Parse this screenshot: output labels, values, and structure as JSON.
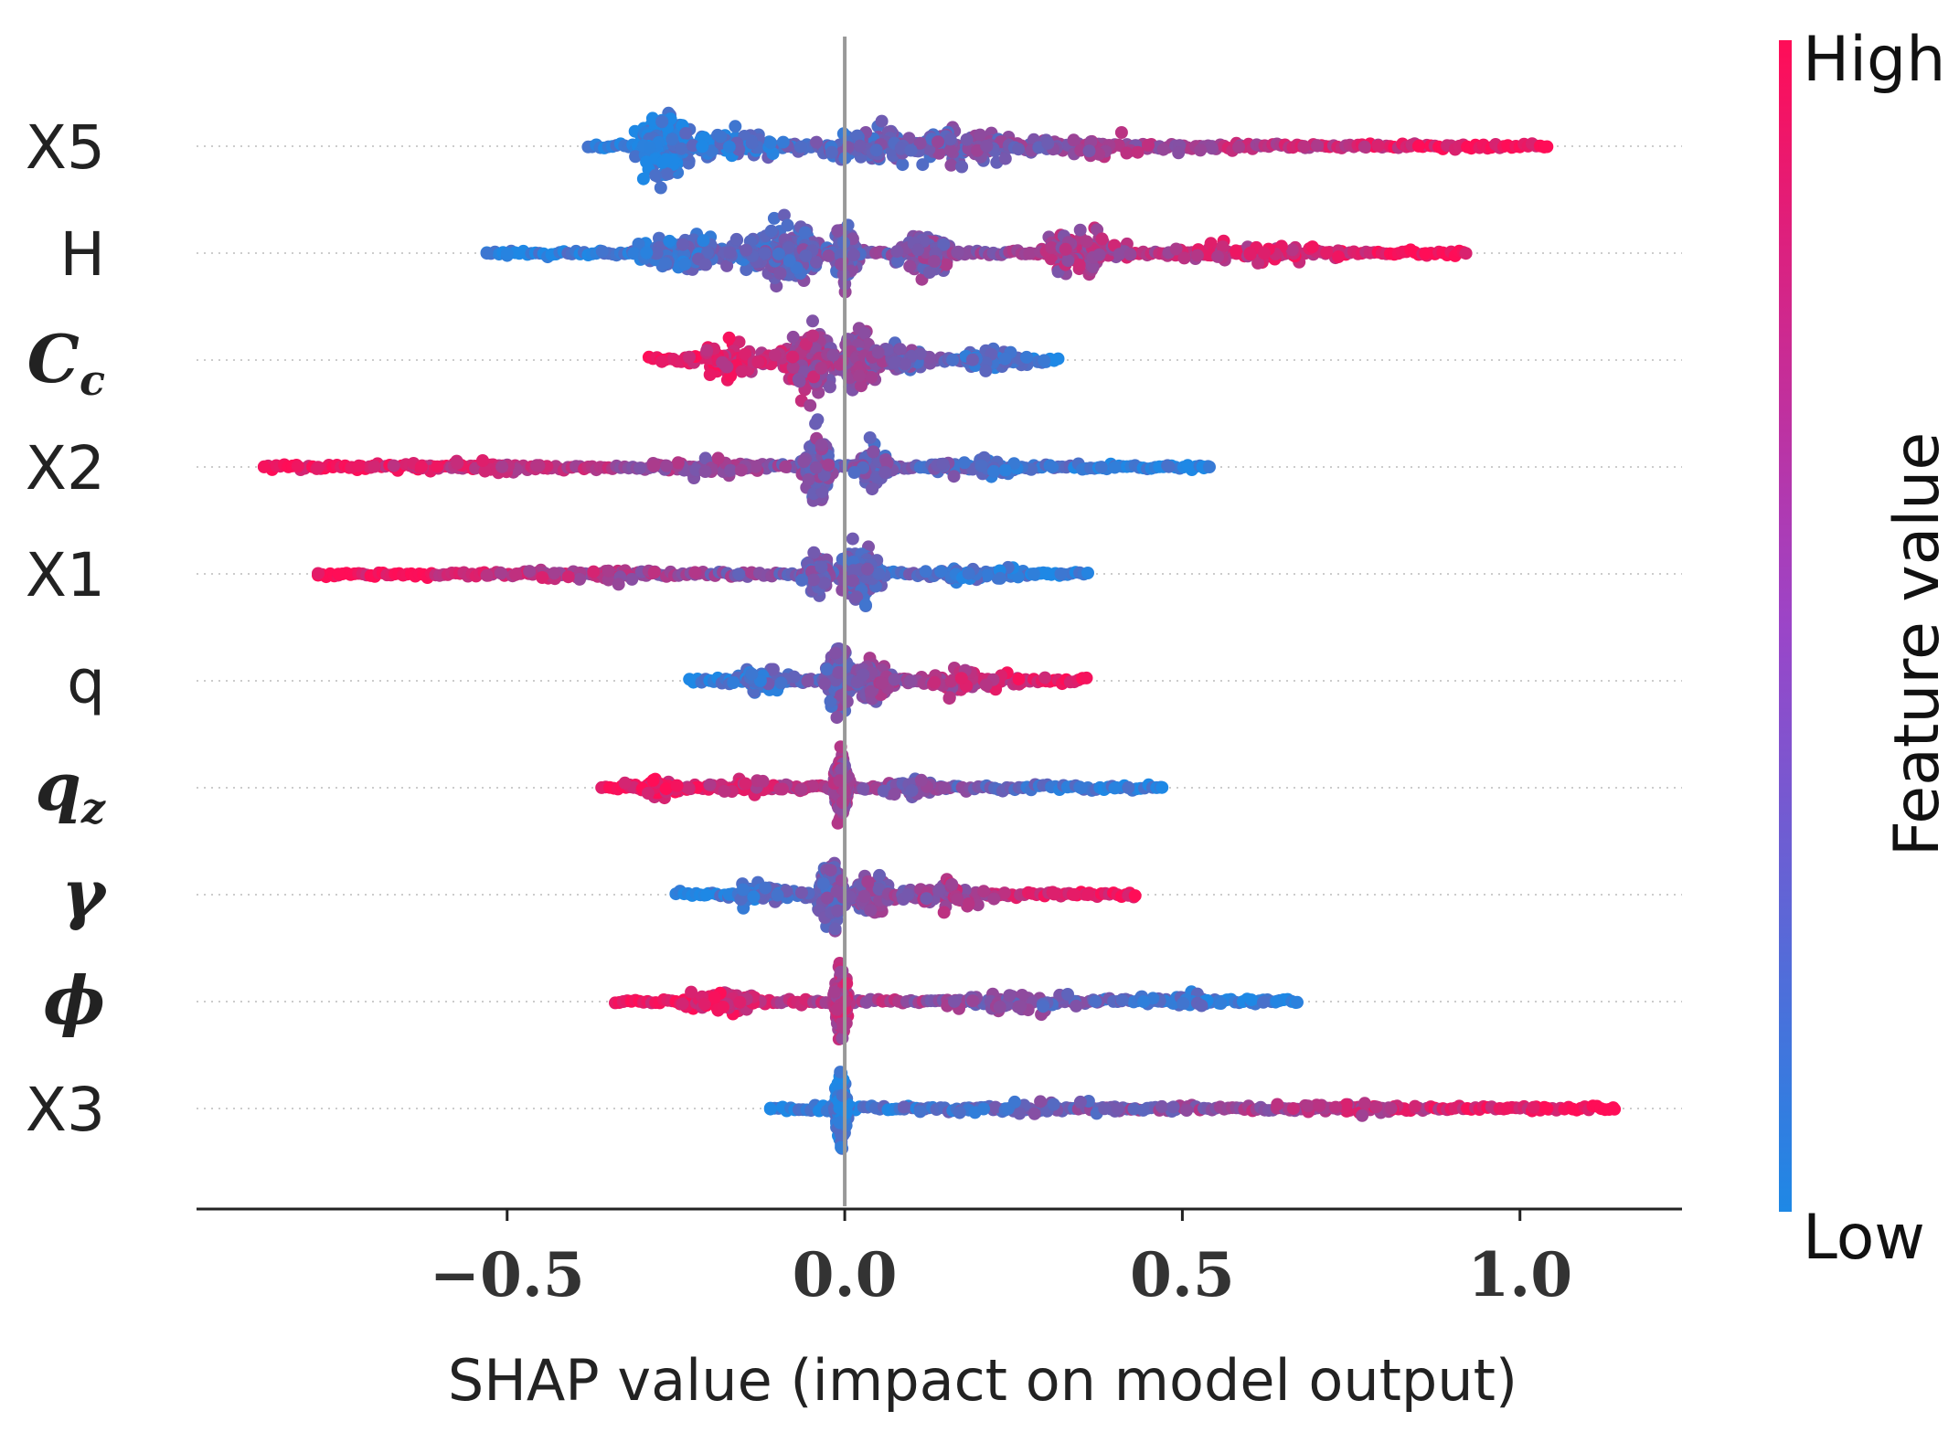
{
  "chart_data": {
    "type": "scatter",
    "subtype": "shap-beeswarm",
    "xlabel": "SHAP value (impact on model output)",
    "xticks": [
      "−0.5",
      "0.0",
      "0.5",
      "1.0"
    ],
    "xtick_values": [
      -0.5,
      0.0,
      0.5,
      1.0
    ],
    "xlim": [
      -0.96,
      1.24
    ],
    "colorbar": {
      "title": "Feature value",
      "high_label": "High",
      "low_label": "Low",
      "high_color": "#ff0d57",
      "low_color": "#1e88e5"
    },
    "features": [
      {
        "name": "X5",
        "math": false,
        "min": -0.38,
        "max": 1.04,
        "high_side": "positive",
        "clusters": [
          [
            -0.27,
            0.04,
            0.95
          ],
          [
            -0.17,
            0.09,
            0.45
          ],
          [
            0.05,
            0.09,
            0.5
          ],
          [
            0.17,
            0.09,
            0.55
          ],
          [
            0.38,
            0.16,
            0.3
          ]
        ],
        "outliers": [
          0.68,
          0.7,
          0.77,
          0.79,
          0.84,
          0.85,
          1.04
        ]
      },
      {
        "name": "H",
        "math": false,
        "min": -0.53,
        "max": 0.92,
        "high_side": "positive",
        "clusters": [
          [
            -0.09,
            0.06,
            0.85
          ],
          [
            -0.22,
            0.1,
            0.55
          ],
          [
            0.0,
            0.02,
            0.7
          ],
          [
            0.12,
            0.05,
            0.6
          ],
          [
            0.35,
            0.07,
            0.55
          ],
          [
            0.6,
            0.15,
            0.3
          ]
        ],
        "outliers": [
          -0.53,
          -0.5,
          0.86,
          0.92
        ]
      },
      {
        "name": "C",
        "sub": "c",
        "math": true,
        "min": -0.29,
        "max": 0.32,
        "high_side": "negative",
        "clusters": [
          [
            -0.05,
            0.04,
            0.85
          ],
          [
            0.02,
            0.03,
            0.8
          ],
          [
            0.08,
            0.04,
            0.4
          ],
          [
            -0.17,
            0.07,
            0.5
          ],
          [
            0.22,
            0.06,
            0.3
          ]
        ],
        "outliers": []
      },
      {
        "name": "X2",
        "math": false,
        "min": -0.86,
        "max": 0.54,
        "high_side": "negative",
        "clusters": [
          [
            -0.04,
            0.02,
            0.85
          ],
          [
            0.04,
            0.03,
            0.5
          ],
          [
            -0.2,
            0.1,
            0.25
          ],
          [
            -0.55,
            0.15,
            0.2
          ],
          [
            0.2,
            0.08,
            0.25
          ]
        ],
        "outliers": [
          -0.86,
          -0.81,
          -0.78,
          0.38,
          0.4,
          0.48,
          0.53,
          0.54
        ]
      },
      {
        "name": "X1",
        "math": false,
        "min": -0.78,
        "max": 0.36,
        "high_side": "negative",
        "clusters": [
          [
            0.02,
            0.03,
            0.85
          ],
          [
            -0.04,
            0.02,
            0.5
          ],
          [
            -0.35,
            0.18,
            0.22
          ],
          [
            0.2,
            0.08,
            0.25
          ]
        ],
        "outliers": [
          -0.78,
          -0.75,
          0.28,
          0.3,
          0.32,
          0.36
        ]
      },
      {
        "name": "q",
        "math": false,
        "min": -0.23,
        "max": 0.36,
        "high_side": "positive",
        "clusters": [
          [
            -0.01,
            0.02,
            0.85
          ],
          [
            0.04,
            0.03,
            0.55
          ],
          [
            -0.12,
            0.06,
            0.3
          ],
          [
            0.18,
            0.09,
            0.35
          ]
        ],
        "outliers": []
      },
      {
        "name": "q",
        "sub": "z",
        "math": true,
        "min": -0.36,
        "max": 0.47,
        "high_side": "negative",
        "clusters": [
          [
            -0.005,
            0.01,
            0.95
          ],
          [
            -0.15,
            0.1,
            0.2
          ],
          [
            0.1,
            0.07,
            0.25
          ],
          [
            -0.28,
            0.04,
            0.25
          ]
        ],
        "outliers": [
          0.35,
          0.4,
          0.42,
          0.47
        ]
      },
      {
        "name": "γ",
        "math": true,
        "min": -0.25,
        "max": 0.43,
        "high_side": "positive",
        "clusters": [
          [
            -0.02,
            0.02,
            0.85
          ],
          [
            0.04,
            0.03,
            0.55
          ],
          [
            -0.12,
            0.06,
            0.3
          ],
          [
            0.15,
            0.08,
            0.35
          ]
        ],
        "outliers": [
          0.31,
          0.34,
          0.36,
          0.42,
          0.43
        ]
      },
      {
        "name": "ϕ",
        "math": true,
        "min": -0.34,
        "max": 0.67,
        "high_side": "negative",
        "clusters": [
          [
            -0.005,
            0.01,
            0.95
          ],
          [
            -0.18,
            0.08,
            0.3
          ],
          [
            0.25,
            0.13,
            0.28
          ],
          [
            0.5,
            0.08,
            0.2
          ]
        ],
        "outliers": [
          0.62,
          0.64,
          0.67
        ]
      },
      {
        "name": "X3",
        "math": false,
        "min": -0.11,
        "max": 1.14,
        "high_side": "positive",
        "clusters": [
          [
            -0.005,
            0.008,
            1.0
          ],
          [
            0.3,
            0.22,
            0.2
          ],
          [
            0.75,
            0.12,
            0.18
          ]
        ],
        "outliers": [
          -0.11,
          0.98,
          1.02,
          1.04,
          1.14
        ]
      }
    ]
  }
}
